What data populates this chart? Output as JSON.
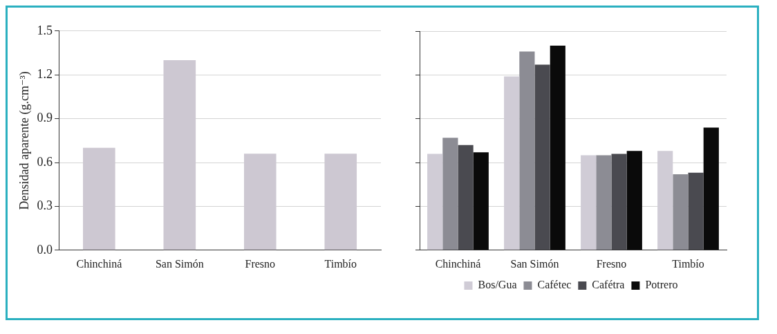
{
  "chart_data": [
    {
      "type": "bar",
      "ylabel": "Densidad aparente (g.cm⁻³)",
      "categories": [
        "Chinchiná",
        "San Simón",
        "Fresno",
        "Timbío"
      ],
      "values": [
        0.7,
        1.3,
        0.66,
        0.66
      ],
      "color": "#cdc8d2",
      "ylim": [
        0,
        1.5
      ],
      "yticks": [
        {
          "value": 0,
          "label": "0.0"
        },
        0.3,
        0.6,
        0.9,
        1.2,
        1.5
      ],
      "grid": "y",
      "legend": false
    },
    {
      "type": "bar",
      "categories": [
        "Chinchiná",
        "San Simón",
        "Fresno",
        "Timbío"
      ],
      "series": [
        {
          "name": "Bos/Gua",
          "color": "#d0ccd6",
          "values": [
            0.66,
            1.19,
            0.65,
            0.68
          ]
        },
        {
          "name": "Cafétec",
          "color": "#8c8c94",
          "values": [
            0.77,
            1.36,
            0.65,
            0.52
          ]
        },
        {
          "name": "Cafétra",
          "color": "#4a4a50",
          "values": [
            0.72,
            1.27,
            0.66,
            0.53
          ]
        },
        {
          "name": "Potrero",
          "color": "#0a0a0a",
          "values": [
            0.67,
            1.4,
            0.68,
            0.84
          ]
        }
      ],
      "ylim": [
        0,
        1.5
      ],
      "yticks": [
        0,
        0.3,
        0.6,
        0.9,
        1.2,
        1.5
      ],
      "tick_labels": "x",
      "grid": "y",
      "legend": "bottom"
    }
  ]
}
